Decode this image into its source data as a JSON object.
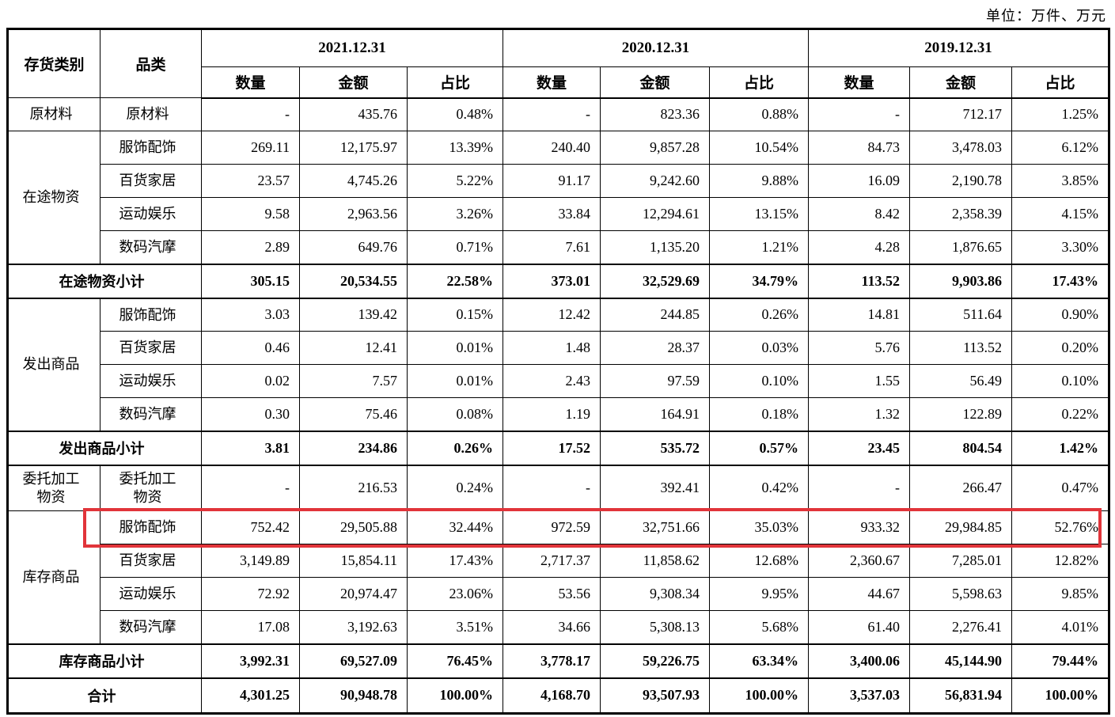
{
  "unit_label": "单位：万件、万元",
  "colors": {
    "highlight_border": "#e1343a",
    "table_border": "#000000",
    "background": "#ffffff",
    "text": "#000000"
  },
  "table": {
    "header": {
      "col_category": "存货类别",
      "col_subcategory": "品类",
      "periods": [
        "2021.12.31",
        "2020.12.31",
        "2019.12.31"
      ],
      "metrics": [
        "数量",
        "金额",
        "占比"
      ]
    },
    "rows": [
      {
        "type": "data",
        "category": "原材料",
        "category_rowspan": 1,
        "label": "原材料",
        "values": [
          "-",
          "435.76",
          "0.48%",
          "-",
          "823.36",
          "0.88%",
          "-",
          "712.17",
          "1.25%"
        ]
      },
      {
        "type": "data",
        "category": "在途物资",
        "category_rowspan": 4,
        "label": "服饰配饰",
        "values": [
          "269.11",
          "12,175.97",
          "13.39%",
          "240.40",
          "9,857.28",
          "10.54%",
          "84.73",
          "3,478.03",
          "6.12%"
        ]
      },
      {
        "type": "data",
        "label": "百货家居",
        "values": [
          "23.57",
          "4,745.26",
          "5.22%",
          "91.17",
          "9,242.60",
          "9.88%",
          "16.09",
          "2,190.78",
          "3.85%"
        ]
      },
      {
        "type": "data",
        "label": "运动娱乐",
        "values": [
          "9.58",
          "2,963.56",
          "3.26%",
          "33.84",
          "12,294.61",
          "13.15%",
          "8.42",
          "2,358.39",
          "4.15%"
        ]
      },
      {
        "type": "data",
        "label": "数码汽摩",
        "values": [
          "2.89",
          "649.76",
          "0.71%",
          "7.61",
          "1,135.20",
          "1.21%",
          "4.28",
          "1,876.65",
          "3.30%"
        ]
      },
      {
        "type": "subtotal",
        "label": "在途物资小计",
        "values": [
          "305.15",
          "20,534.55",
          "22.58%",
          "373.01",
          "32,529.69",
          "34.79%",
          "113.52",
          "9,903.86",
          "17.43%"
        ]
      },
      {
        "type": "data",
        "category": "发出商品",
        "category_rowspan": 4,
        "label": "服饰配饰",
        "values": [
          "3.03",
          "139.42",
          "0.15%",
          "12.42",
          "244.85",
          "0.26%",
          "14.81",
          "511.64",
          "0.90%"
        ]
      },
      {
        "type": "data",
        "label": "百货家居",
        "values": [
          "0.46",
          "12.41",
          "0.01%",
          "1.48",
          "28.37",
          "0.03%",
          "5.76",
          "113.52",
          "0.20%"
        ]
      },
      {
        "type": "data",
        "label": "运动娱乐",
        "values": [
          "0.02",
          "7.57",
          "0.01%",
          "2.43",
          "97.59",
          "0.10%",
          "1.55",
          "56.49",
          "0.10%"
        ]
      },
      {
        "type": "data",
        "label": "数码汽摩",
        "values": [
          "0.30",
          "75.46",
          "0.08%",
          "1.19",
          "164.91",
          "0.18%",
          "1.32",
          "122.89",
          "0.22%"
        ]
      },
      {
        "type": "subtotal",
        "label": "发出商品小计",
        "values": [
          "3.81",
          "234.86",
          "0.26%",
          "17.52",
          "535.72",
          "0.57%",
          "23.45",
          "804.54",
          "1.42%"
        ]
      },
      {
        "type": "data",
        "tall": true,
        "category": "委托加工\n物资",
        "category_rowspan": 1,
        "label": "委托加工\n物资",
        "values": [
          "-",
          "216.53",
          "0.24%",
          "-",
          "392.41",
          "0.42%",
          "-",
          "266.47",
          "0.47%"
        ]
      },
      {
        "type": "data",
        "highlight": true,
        "category": "库存商品",
        "category_rowspan": 4,
        "label": "服饰配饰",
        "values": [
          "752.42",
          "29,505.88",
          "32.44%",
          "972.59",
          "32,751.66",
          "35.03%",
          "933.32",
          "29,984.85",
          "52.76%"
        ]
      },
      {
        "type": "data",
        "label": "百货家居",
        "values": [
          "3,149.89",
          "15,854.11",
          "17.43%",
          "2,717.37",
          "11,858.62",
          "12.68%",
          "2,360.67",
          "7,285.01",
          "12.82%"
        ]
      },
      {
        "type": "data",
        "label": "运动娱乐",
        "values": [
          "72.92",
          "20,974.47",
          "23.06%",
          "53.56",
          "9,308.34",
          "9.95%",
          "44.67",
          "5,598.63",
          "9.85%"
        ]
      },
      {
        "type": "data",
        "label": "数码汽摩",
        "values": [
          "17.08",
          "3,192.63",
          "3.51%",
          "34.66",
          "5,308.13",
          "5.68%",
          "61.40",
          "2,276.41",
          "4.01%"
        ]
      },
      {
        "type": "subtotal",
        "label": "库存商品小计",
        "values": [
          "3,992.31",
          "69,527.09",
          "76.45%",
          "3,778.17",
          "59,226.75",
          "63.34%",
          "3,400.06",
          "45,144.90",
          "79.44%"
        ]
      },
      {
        "type": "total",
        "label": "合计",
        "values": [
          "4,301.25",
          "90,948.78",
          "100.00%",
          "4,168.70",
          "93,507.93",
          "100.00%",
          "3,537.03",
          "56,831.94",
          "100.00%"
        ]
      }
    ]
  }
}
